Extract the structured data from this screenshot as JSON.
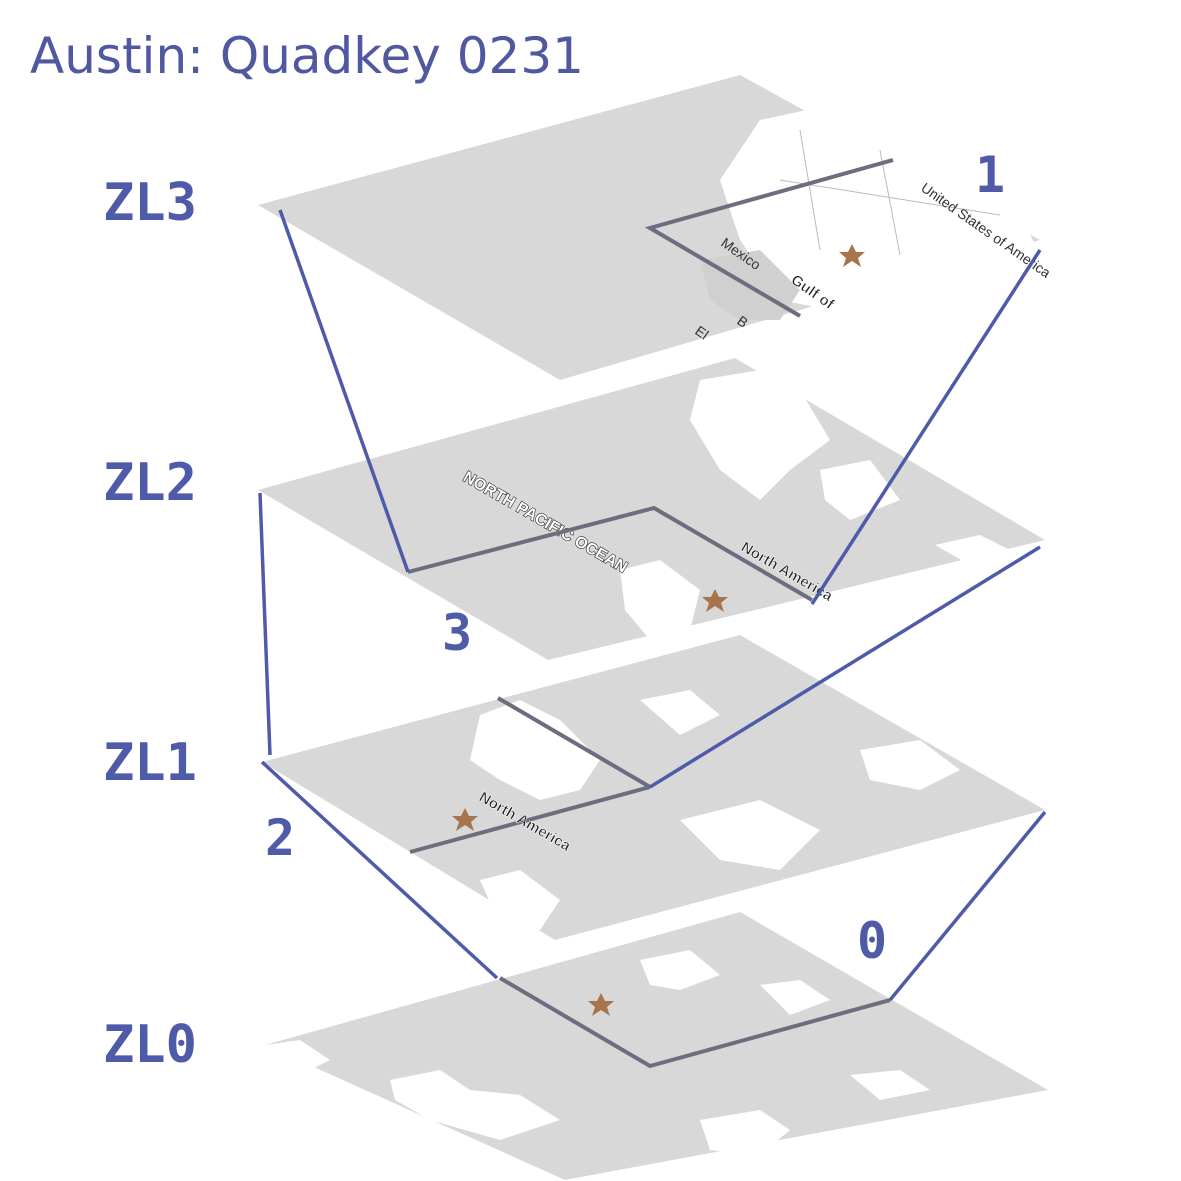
{
  "title": "Austin: Quadkey 0231",
  "zoom_levels": [
    {
      "label": "ZL3"
    },
    {
      "label": "ZL2"
    },
    {
      "label": "ZL1"
    },
    {
      "label": "ZL0"
    }
  ],
  "quadrant_digits": [
    "1",
    "3",
    "2",
    "0"
  ],
  "map_labels": {
    "zl3_country": "United States of America",
    "zl3_mexico": "Mexico",
    "zl3_gulf": "Gulf of",
    "zl3_b": "B",
    "zl3_el": "El",
    "zl2_ocean": "NORTH PACIFIC OCEAN",
    "zl2_continent": "North America",
    "zl1_continent": "North America"
  },
  "colors": {
    "accent": "#4f5aa8",
    "quad_outline": "#6b6e7e",
    "tile": "#d8d8d8",
    "marker": "#a8744e"
  },
  "marker_icon": "star-icon"
}
